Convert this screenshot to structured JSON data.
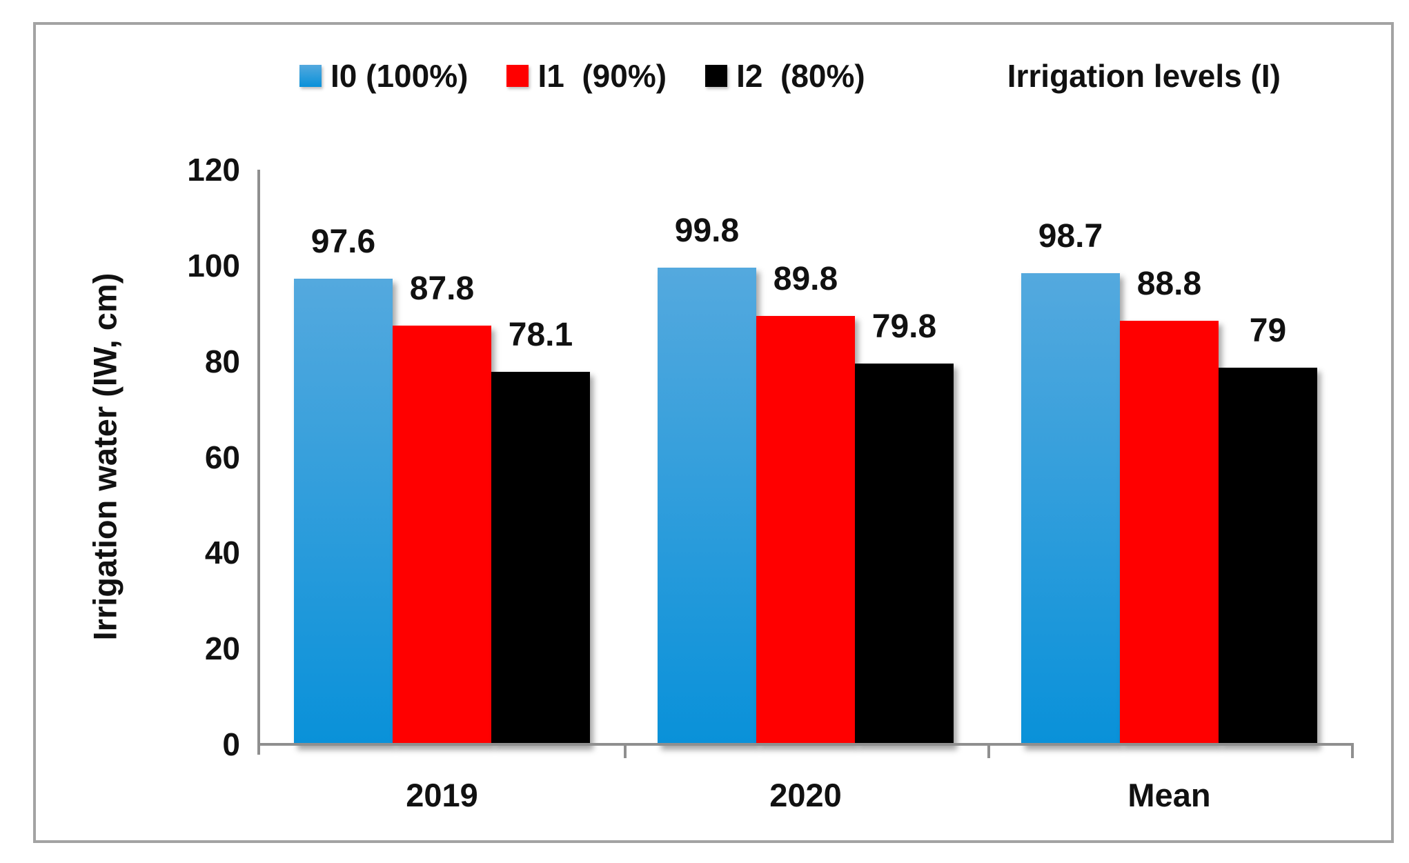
{
  "figure": {
    "legend": {
      "items": [
        {
          "label": "I0 (100%)",
          "color": "#2E9AD8",
          "gradient": [
            "#54A9DE",
            "#0991D9"
          ]
        },
        {
          "label": "I1  (90%)",
          "color": "#FF0000"
        },
        {
          "label": "I2  (80%)",
          "color": "#000000"
        }
      ],
      "title": "Irrigation levels (I)"
    },
    "y_axis_title": "Irrigation water (IW, cm)"
  },
  "chart_data": {
    "type": "bar",
    "categories": [
      "2019",
      "2020",
      "Mean"
    ],
    "series": [
      {
        "name": "I0 (100%)",
        "values": [
          97.6,
          99.8,
          98.7
        ],
        "color": "#2E9AD8",
        "gradient": [
          "#54A9DE",
          "#0991D9"
        ]
      },
      {
        "name": "I1 (90%)",
        "values": [
          87.8,
          89.8,
          88.8
        ],
        "color": "#FF0000"
      },
      {
        "name": "I2 (80%)",
        "values": [
          78.1,
          79.8,
          79
        ],
        "color": "#000000"
      }
    ],
    "ylabel": "Irrigation water (IW, cm)",
    "xlabel": "",
    "ylim": [
      0,
      120
    ],
    "yticks": [
      0,
      20,
      40,
      60,
      80,
      100,
      120
    ],
    "legend_title": "Irrigation levels (I)",
    "legend_position": "top",
    "grid": false,
    "data_labels": true,
    "axis_color": "#8f8f8f",
    "frame_color": "#a3a3a3"
  }
}
